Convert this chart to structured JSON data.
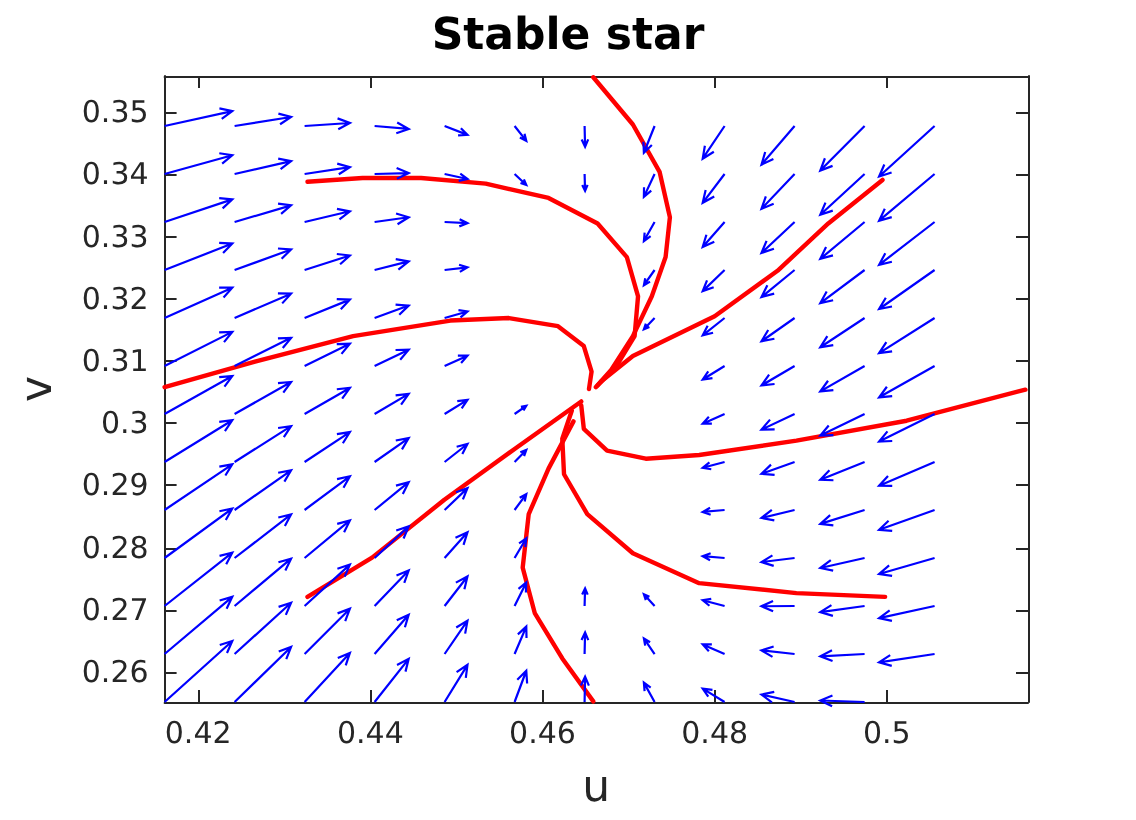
{
  "chart_data": {
    "type": "line",
    "title": "Stable star",
    "xlabel": "u",
    "ylabel": "v",
    "xlim": [
      0.4161,
      0.5164
    ],
    "ylim": [
      0.2552,
      0.3558
    ],
    "xticks": [
      0.42,
      0.44,
      0.46,
      0.48,
      0.5
    ],
    "yticks": [
      0.26,
      0.27,
      0.28,
      0.29,
      0.3,
      0.31,
      0.32,
      0.33,
      0.34,
      0.35
    ],
    "grid": false,
    "marker": "none",
    "line_style": "solid",
    "series": [
      {
        "color": "#ff0000",
        "x": [
          0.4327,
          0.4391,
          0.4459,
          0.4534,
          0.4607,
          0.4664,
          0.4698,
          0.4711,
          0.4707,
          0.4686,
          0.4662
        ],
        "values": [
          0.3388,
          0.3394,
          0.3394,
          0.3385,
          0.3362,
          0.3321,
          0.3267,
          0.3204,
          0.314,
          0.3092,
          0.3058
        ]
      },
      {
        "color": "#ff0000",
        "x": [
          0.4161,
          0.4266,
          0.438,
          0.4493,
          0.4561,
          0.4618,
          0.4648,
          0.4657,
          0.4654
        ],
        "values": [
          0.3058,
          0.3099,
          0.314,
          0.3165,
          0.3169,
          0.3156,
          0.3124,
          0.3083,
          0.3055
        ]
      },
      {
        "color": "#ff0000",
        "x": [
          0.4659,
          0.4705,
          0.4736,
          0.4748,
          0.4743,
          0.4727,
          0.4705,
          0.468,
          0.4664
        ],
        "values": [
          0.3556,
          0.348,
          0.3404,
          0.3331,
          0.3267,
          0.3204,
          0.314,
          0.3086,
          0.3061
        ]
      },
      {
        "color": "#ff0000",
        "x": [
          0.4995,
          0.4932,
          0.4873,
          0.48,
          0.4705,
          0.4668
        ],
        "values": [
          0.3391,
          0.3321,
          0.3245,
          0.3172,
          0.3108,
          0.3067
        ]
      },
      {
        "color": "#ff0000",
        "x": [
          0.5161,
          0.5023,
          0.4895,
          0.4782,
          0.472,
          0.4675,
          0.4648,
          0.4645
        ],
        "values": [
          0.3054,
          0.3004,
          0.2972,
          0.2949,
          0.2943,
          0.2956,
          0.2991,
          0.3029
        ]
      },
      {
        "color": "#ff0000",
        "x": [
          0.4998,
          0.4895,
          0.4782,
          0.4705,
          0.4652,
          0.4625,
          0.4623,
          0.4634
        ],
        "values": [
          0.2721,
          0.2727,
          0.2743,
          0.2791,
          0.2854,
          0.2918,
          0.2975,
          0.302
        ]
      },
      {
        "color": "#ff0000",
        "x": [
          0.4659,
          0.4623,
          0.4591,
          0.4577,
          0.4584,
          0.4607,
          0.4636
        ],
        "values": [
          0.2553,
          0.2622,
          0.2695,
          0.2768,
          0.2854,
          0.2927,
          0.3003
        ]
      },
      {
        "color": "#ff0000",
        "x": [
          0.4327,
          0.4402,
          0.4486,
          0.4568,
          0.4645
        ],
        "values": [
          0.2721,
          0.2784,
          0.2877,
          0.2959,
          0.3035
        ]
      }
    ]
  }
}
